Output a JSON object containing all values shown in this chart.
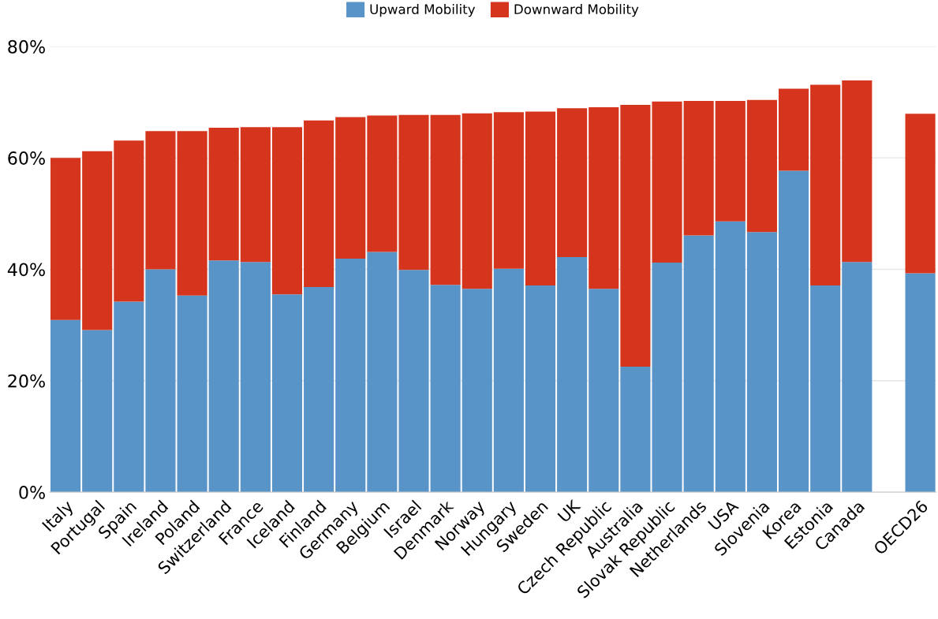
{
  "chart_data": {
    "type": "bar",
    "stacked": true,
    "categories": [
      "Italy",
      "Portugal",
      "Spain",
      "Ireland",
      "Poland",
      "Switzerland",
      "France",
      "Iceland",
      "Finland",
      "Germany",
      "Belgium",
      "Israel",
      "Denmark",
      "Norway",
      "Hungary",
      "Sweden",
      "UK",
      "Czech Republic",
      "Australia",
      "Slovak Republic",
      "Netherlands",
      "USA",
      "Slovenia",
      "Korea",
      "Estonia",
      "Canada",
      null,
      "OECD26"
    ],
    "series": [
      {
        "name": "Upward Mobility",
        "color": "#5894c8",
        "values": [
          30.9,
          29.1,
          34.2,
          40.0,
          35.3,
          41.6,
          41.3,
          35.5,
          36.8,
          41.9,
          43.1,
          39.9,
          37.2,
          36.5,
          40.1,
          37.1,
          42.2,
          36.5,
          22.5,
          41.2,
          46.1,
          48.6,
          46.7,
          57.7,
          37.1,
          41.3,
          null,
          39.3
        ]
      },
      {
        "name": "Downward Mobility",
        "color": "#d5351d",
        "values": [
          29.1,
          32.1,
          28.9,
          24.8,
          29.5,
          23.8,
          24.2,
          30.0,
          29.9,
          25.4,
          24.5,
          27.8,
          30.5,
          31.5,
          28.1,
          31.2,
          26.7,
          32.6,
          47.0,
          28.9,
          24.1,
          21.6,
          23.7,
          14.7,
          36.0,
          32.6,
          null,
          28.6
        ]
      }
    ],
    "ylim": [
      0,
      80
    ],
    "yticks": [
      {
        "value": 0,
        "label": "0%"
      },
      {
        "value": 20,
        "label": "20%"
      },
      {
        "value": 40,
        "label": "40%"
      },
      {
        "value": 60,
        "label": "60%"
      },
      {
        "value": 80,
        "label": "80%"
      }
    ],
    "grid": "y",
    "legend": "top"
  }
}
